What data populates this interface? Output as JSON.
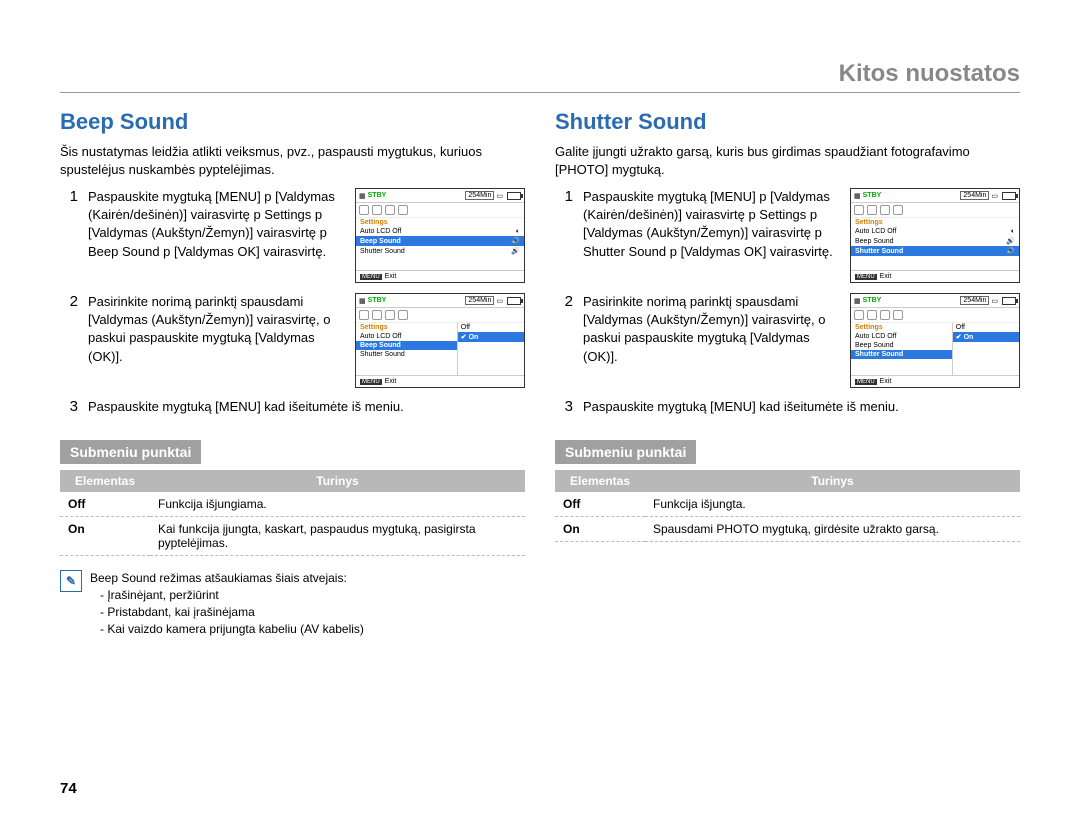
{
  "page_title": "Kitos nuostatos",
  "page_number": "74",
  "left": {
    "title": "Beep Sound",
    "intro": "Šis nustatymas leidžia atlikti veiksmus, pvz., paspausti mygtukus, kuriuos spustelėjus nuskambės pyptelėjimas.",
    "step1_num": "1",
    "step1": "Paspauskite mygtuką [MENU] p [Valdymas (Kairėn/dešinėn)] vairasvirtę p Settings p [Valdymas (Aukštyn/Žemyn)] vairasvirtę p Beep Sound p [Valdymas OK] vairasvirtę.",
    "step2_num": "2",
    "step2": "Pasirinkite norimą parinktį spausdami [Valdymas (Aukštyn/Žemyn)] vairasvirtę, o paskui paspauskite mygtuką [Valdymas (OK)].",
    "step3_num": "3",
    "step3": "Paspauskite mygtuką [MENU] kad išeitumėte iš meniu.",
    "sub_title": "Submeniu punktai",
    "th1": "Elementas",
    "th2": "Turinys",
    "r1c1": "Off",
    "r1c2": "Funkcija išjungiama.",
    "r2c1": "On",
    "r2c2": "Kai funkcija įjungta, kaskart, paspaudus mygtuką, pasigirsta pyptelėjimas.",
    "note_title": "Beep Sound režimas atšaukiamas šiais atvejais:",
    "note1": "Įrašinėjant, peržiūrint",
    "note2": "Pristabdant, kai įrašinėjama",
    "note3": "Kai vaizdo kamera prijungta kabeliu (AV kabelis)",
    "scr1": {
      "stby": "STBY",
      "time": "254Min",
      "hdr": "Settings",
      "r1": "Auto LCD Off",
      "r2": "Beep Sound",
      "r3": "Shutter Sound",
      "exit": "Exit"
    },
    "scr2": {
      "stby": "STBY",
      "time": "254Min",
      "hdr": "Settings",
      "r1": "Auto LCD Off",
      "r2": "Beep Sound",
      "r3": "Shutter Sound",
      "o1": "Off",
      "o2": "On",
      "exit": "Exit"
    }
  },
  "right": {
    "title": "Shutter Sound",
    "intro": "Galite įjungti užrakto garsą, kuris bus girdimas spaudžiant fotografavimo [PHOTO] mygtuką.",
    "step1_num": "1",
    "step1": "Paspauskite mygtuką [MENU] p [Valdymas (Kairėn/dešinėn)] vairasvirtę p Settings p [Valdymas (Aukštyn/Žemyn)] vairasvirtę p Shutter Sound p [Valdymas OK] vairasvirtę.",
    "step2_num": "2",
    "step2": "Pasirinkite norimą parinktį spausdami [Valdymas (Aukštyn/Žemyn)] vairasvirtę, o paskui paspauskite mygtuką [Valdymas (OK)].",
    "step3_num": "3",
    "step3": "Paspauskite mygtuką [MENU] kad išeitumėte iš meniu.",
    "sub_title": "Submeniu punktai",
    "th1": "Elementas",
    "th2": "Turinys",
    "r1c1": "Off",
    "r1c2": "Funkcija išjungta.",
    "r2c1": "On",
    "r2c2": "Spausdami PHOTO mygtuką, girdėsite užrakto garsą.",
    "scr1": {
      "stby": "STBY",
      "time": "254Min",
      "hdr": "Settings",
      "r1": "Auto LCD Off",
      "r2": "Beep Sound",
      "r3": "Shutter Sound",
      "exit": "Exit"
    },
    "scr2": {
      "stby": "STBY",
      "time": "254Min",
      "hdr": "Settings",
      "r1": "Auto LCD Off",
      "r2": "Beep Sound",
      "r3": "Shutter Sound",
      "o1": "Off",
      "o2": "On",
      "exit": "Exit"
    }
  }
}
